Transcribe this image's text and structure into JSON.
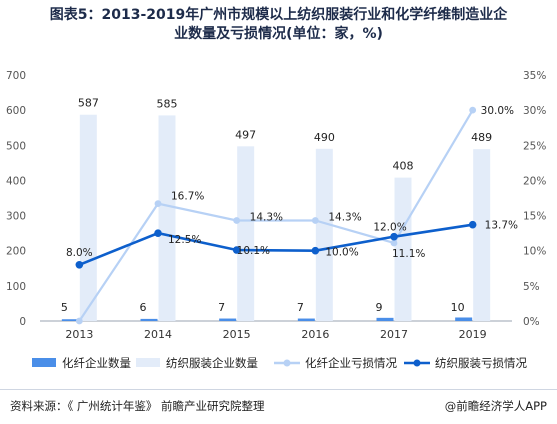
{
  "chart_data": {
    "type": "bar+line",
    "title_line1": "图表5：2013-2019年广州市规模以上纺织服装行业和化学纤维制造业企",
    "title_line2": "业数量及亏损情况(单位：家，%)",
    "categories": [
      "2013",
      "2014",
      "2015",
      "2016",
      "2017",
      "2019"
    ],
    "y_left": {
      "min": 0,
      "max": 700,
      "ticks": [
        "0",
        "100",
        "200",
        "300",
        "400",
        "500",
        "600",
        "700"
      ]
    },
    "y_right": {
      "min": 0,
      "max": 35,
      "ticks": [
        "0%",
        "5%",
        "10%",
        "15%",
        "20%",
        "25%",
        "30%",
        "35%"
      ]
    },
    "bar_series": [
      {
        "name": "化纤企业数量",
        "values": [
          5,
          6,
          7,
          7,
          9,
          10
        ],
        "labels": [
          "5",
          "6",
          "7",
          "7",
          "9",
          "10"
        ],
        "color": "#4a8ee8"
      },
      {
        "name": "纺织服装企业数量",
        "values": [
          587,
          585,
          497,
          490,
          408,
          489
        ],
        "labels": [
          "587",
          "585",
          "497",
          "490",
          "408",
          "489"
        ],
        "color": "#e3ecf9"
      }
    ],
    "line_series": [
      {
        "name": "化纤企业亏损情况",
        "values": [
          0,
          16.7,
          14.3,
          14.3,
          11.1,
          30.0
        ],
        "labels": [
          "",
          "16.7%",
          "14.3%",
          "14.3%",
          "11.1%",
          "30.0%"
        ],
        "color": "#b7d1f5"
      },
      {
        "name": "纺织服装亏损情况",
        "values": [
          8.0,
          12.5,
          10.1,
          10.0,
          12.0,
          13.7
        ],
        "labels": [
          "8.0%",
          "12.5%",
          "10.1%",
          "10.0%",
          "12.0%",
          "13.7%"
        ],
        "color": "#0d5fcc"
      }
    ],
    "legend_position": "bottom",
    "grid": false
  },
  "footer": {
    "source": "资料来源：《 广州统计年鉴》 前瞻产业研究院整理",
    "brand": "@前瞻经济学人APP"
  }
}
